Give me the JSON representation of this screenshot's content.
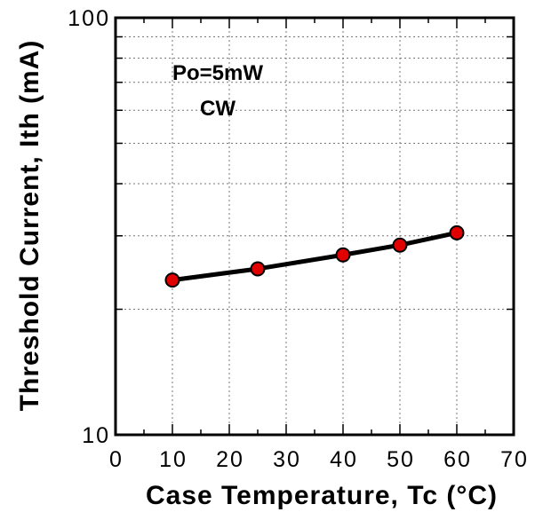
{
  "chart_data": {
    "type": "line",
    "xlabel": "Case Temperature, Tc (°C)",
    "ylabel": "Threshold Current, Ith (mA)",
    "xlim": [
      0,
      70
    ],
    "ylim": [
      10,
      100
    ],
    "yscale": "log",
    "x_ticks": [
      0,
      10,
      20,
      30,
      40,
      50,
      60,
      70
    ],
    "y_tick_labels": [
      {
        "value": 10,
        "label": "10"
      },
      {
        "value": 100,
        "label": "100"
      }
    ],
    "y_grid_values": [
      20,
      30,
      40,
      50,
      60,
      70,
      80,
      90
    ],
    "grid": true,
    "annotations": [
      "Po=5mW",
      "CW"
    ],
    "series": [
      {
        "x": [
          10,
          25,
          40,
          50,
          60
        ],
        "y": [
          23.5,
          25.0,
          27.0,
          28.5,
          30.5
        ],
        "line_color": "#000000",
        "marker_color": "#e00000"
      }
    ]
  }
}
